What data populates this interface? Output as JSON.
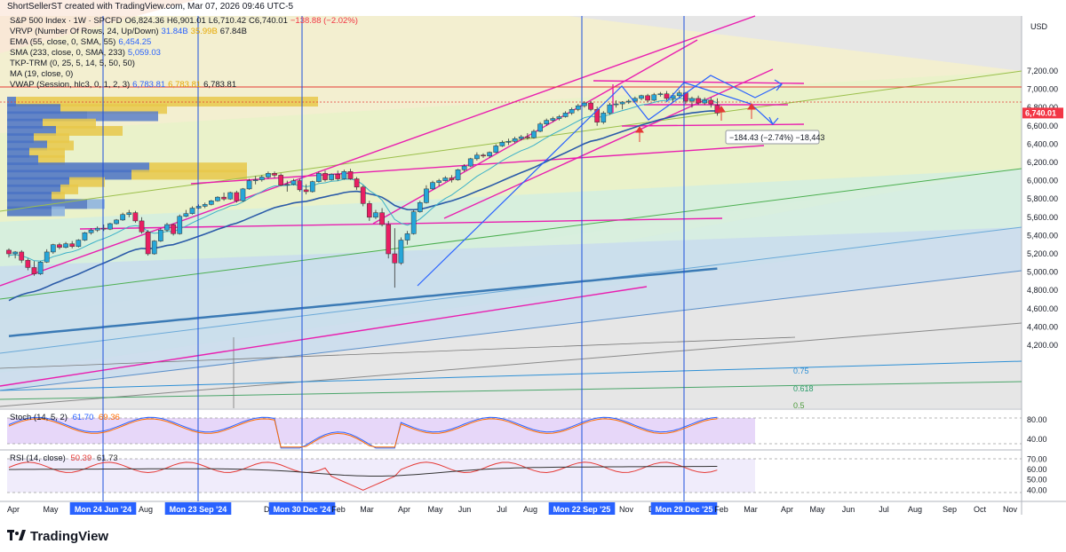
{
  "header": {
    "text": "ShortSellerST created with TradingView.com, Mar 07, 2026 09:46 UTC-5"
  },
  "legend": [
    {
      "label": "S&P 500 Index · 1W · SPCFD",
      "values": [
        "O6,824.36",
        "H6,901.01",
        "L6,710.42",
        "C6,740.01",
        "−138.88 (−2.02%)"
      ],
      "color": "#131722"
    },
    {
      "label": "VRVP (Number Of Rows, 24, Up/Down)",
      "values": [
        "31.84B",
        "35.99B",
        "67.84B"
      ],
      "color": "#131722"
    },
    {
      "label": "EMA (55, close, 0, SMA, 55)",
      "values": [
        "6,454.25"
      ],
      "color": "#131722"
    },
    {
      "label": "SMA (233, close, 0, SMA, 233)",
      "values": [
        "5,059.03"
      ],
      "color": "#131722"
    },
    {
      "label": "TKP-TRM (0, 25, 5, 14, 5, 50, 50)",
      "values": [],
      "color": "#131722"
    },
    {
      "label": "MA (19, close, 0)",
      "values": [],
      "color": "#131722"
    },
    {
      "label": "VWAP (Session, hlc3, 0, 1, 2, 3)",
      "values": [
        "6,783.81",
        "6,783.81",
        "6,783.81"
      ],
      "color": "#131722"
    }
  ],
  "price_axis": {
    "unit": "USD",
    "ticks": [
      "7,200.00",
      "7,000.00",
      "6,800.00",
      "6,600.00",
      "6,400.00",
      "6,200.00",
      "6,000.00",
      "5,800.00",
      "5,600.00",
      "5,400.00",
      "5,200.00",
      "5,000.00",
      "4,800.00",
      "4,600.00",
      "4,400.00",
      "4,200.00"
    ],
    "last_price": "6,740.01",
    "last_price_color": "#f23645"
  },
  "fib_labels": [
    "0.75",
    "0.618",
    "0.5"
  ],
  "measure_label": "−184.43 (−2.74%) −18,443",
  "stoch": {
    "label": "Stoch (14, 5, 2)",
    "values": [
      "61.70",
      "69.36"
    ],
    "ticks": [
      "80.00",
      "40.00"
    ]
  },
  "rsi": {
    "label": "RSI (14, close)",
    "values": [
      "50.39",
      "61.73"
    ],
    "ticks": [
      "70.00",
      "60.00",
      "50.00",
      "40.00"
    ]
  },
  "time_axis": {
    "labels": [
      "Apr",
      "May",
      "Mon 24 Jun '24",
      "Aug",
      "Mon 23 Sep '24",
      "Dec",
      "Mon 30 Dec '24",
      "Feb",
      "Mar",
      "Apr",
      "May",
      "Jun",
      "Jul",
      "Aug",
      "Mon 22 Sep '25",
      "Nov",
      "Dec",
      "Mon 29 Dec '25",
      "Feb",
      "Mar",
      "Apr",
      "May",
      "Jun",
      "Jul",
      "Aug",
      "Sep",
      "Oct",
      "Nov"
    ],
    "highlighted": [
      "Mon 24 Jun '24",
      "Mon 23 Sep '24",
      "Mon 30 Dec '24",
      "Mon 22 Sep '25",
      "Mon 29 Dec '25"
    ]
  },
  "brand": "TradingView",
  "colors": {
    "up_candle": "#26a6d9",
    "down_candle": "#e91e63",
    "channel": "#e91eaf",
    "ema": "#2a5aa8",
    "sma": "#3b7ab5",
    "vline": "#1e50dc"
  },
  "chart_data": {
    "type": "candlestick",
    "symbol": "S&P 500 Index",
    "timeframe": "1W",
    "ylim": [
      4170,
      7320
    ],
    "candles": [
      [
        5240,
        5260,
        5160,
        5200
      ],
      [
        5200,
        5230,
        5150,
        5220
      ],
      [
        5220,
        5240,
        5100,
        5130
      ],
      [
        5130,
        5150,
        5020,
        5050
      ],
      [
        5050,
        5120,
        4960,
        4980
      ],
      [
        4980,
        5120,
        4970,
        5110
      ],
      [
        5110,
        5250,
        5100,
        5220
      ],
      [
        5220,
        5310,
        5200,
        5300
      ],
      [
        5300,
        5320,
        5250,
        5270
      ],
      [
        5270,
        5330,
        5260,
        5310
      ],
      [
        5310,
        5340,
        5260,
        5280
      ],
      [
        5280,
        5360,
        5270,
        5350
      ],
      [
        5350,
        5440,
        5340,
        5430
      ],
      [
        5430,
        5480,
        5410,
        5460
      ],
      [
        5460,
        5500,
        5440,
        5480
      ],
      [
        5480,
        5520,
        5450,
        5470
      ],
      [
        5470,
        5540,
        5460,
        5530
      ],
      [
        5530,
        5580,
        5520,
        5570
      ],
      [
        5570,
        5650,
        5560,
        5630
      ],
      [
        5630,
        5680,
        5600,
        5650
      ],
      [
        5650,
        5670,
        5540,
        5560
      ],
      [
        5560,
        5600,
        5420,
        5440
      ],
      [
        5440,
        5460,
        5180,
        5200
      ],
      [
        5200,
        5350,
        5190,
        5340
      ],
      [
        5340,
        5480,
        5330,
        5460
      ],
      [
        5460,
        5540,
        5440,
        5520
      ],
      [
        5520,
        5530,
        5400,
        5420
      ],
      [
        5420,
        5630,
        5410,
        5610
      ],
      [
        5610,
        5680,
        5600,
        5640
      ],
      [
        5640,
        5720,
        5630,
        5700
      ],
      [
        5700,
        5740,
        5690,
        5720
      ],
      [
        5720,
        5760,
        5700,
        5740
      ],
      [
        5740,
        5790,
        5730,
        5780
      ],
      [
        5780,
        5830,
        5770,
        5820
      ],
      [
        5820,
        5870,
        5780,
        5800
      ],
      [
        5800,
        5880,
        5790,
        5870
      ],
      [
        5870,
        5890,
        5760,
        5780
      ],
      [
        5780,
        5920,
        5770,
        5910
      ],
      [
        5910,
        6020,
        5900,
        6000
      ],
      [
        6000,
        6050,
        5960,
        6010
      ],
      [
        6010,
        6060,
        5990,
        6040
      ],
      [
        6040,
        6100,
        6020,
        6080
      ],
      [
        6080,
        6100,
        6030,
        6060
      ],
      [
        6060,
        6080,
        5940,
        5950
      ],
      [
        5950,
        6000,
        5880,
        5960
      ],
      [
        5960,
        6020,
        5950,
        6000
      ],
      [
        6000,
        6020,
        5880,
        5900
      ],
      [
        5900,
        5960,
        5850,
        5880
      ],
      [
        5880,
        6000,
        5870,
        5990
      ],
      [
        5990,
        6100,
        5980,
        6080
      ],
      [
        6080,
        6110,
        5990,
        6010
      ],
      [
        6010,
        6080,
        6000,
        6070
      ],
      [
        6070,
        6110,
        6000,
        6020
      ],
      [
        6020,
        6120,
        6010,
        6100
      ],
      [
        6100,
        6130,
        6010,
        6020
      ],
      [
        6020,
        6040,
        5900,
        5930
      ],
      [
        5930,
        5950,
        5720,
        5750
      ],
      [
        5750,
        5780,
        5560,
        5600
      ],
      [
        5600,
        5680,
        5580,
        5650
      ],
      [
        5650,
        5700,
        5500,
        5520
      ],
      [
        5520,
        5560,
        5150,
        5200
      ],
      [
        5200,
        5480,
        4830,
        5100
      ],
      [
        5100,
        5380,
        5080,
        5350
      ],
      [
        5350,
        5450,
        5300,
        5420
      ],
      [
        5420,
        5680,
        5410,
        5660
      ],
      [
        5660,
        5780,
        5650,
        5760
      ],
      [
        5760,
        5950,
        5750,
        5910
      ],
      [
        5910,
        6000,
        5900,
        5980
      ],
      [
        5980,
        6020,
        5940,
        6000
      ],
      [
        6000,
        6050,
        5990,
        6030
      ],
      [
        6030,
        6060,
        5980,
        6010
      ],
      [
        6010,
        6130,
        6000,
        6120
      ],
      [
        6120,
        6180,
        6100,
        6160
      ],
      [
        6160,
        6250,
        6150,
        6240
      ],
      [
        6240,
        6310,
        6220,
        6280
      ],
      [
        6280,
        6300,
        6250,
        6270
      ],
      [
        6270,
        6320,
        6250,
        6310
      ],
      [
        6310,
        6400,
        6300,
        6380
      ],
      [
        6380,
        6440,
        6370,
        6420
      ],
      [
        6420,
        6460,
        6390,
        6430
      ],
      [
        6430,
        6480,
        6410,
        6460
      ],
      [
        6460,
        6500,
        6440,
        6480
      ],
      [
        6480,
        6520,
        6450,
        6470
      ],
      [
        6470,
        6560,
        6460,
        6540
      ],
      [
        6540,
        6640,
        6530,
        6620
      ],
      [
        6620,
        6680,
        6600,
        6660
      ],
      [
        6660,
        6700,
        6640,
        6680
      ],
      [
        6680,
        6720,
        6660,
        6700
      ],
      [
        6700,
        6760,
        6690,
        6740
      ],
      [
        6740,
        6800,
        6720,
        6780
      ],
      [
        6780,
        6840,
        6760,
        6820
      ],
      [
        6820,
        6870,
        6800,
        6850
      ],
      [
        6850,
        6870,
        6760,
        6780
      ],
      [
        6780,
        6810,
        6600,
        6640
      ],
      [
        6640,
        6760,
        6620,
        6740
      ],
      [
        6740,
        6850,
        6720,
        6830
      ],
      [
        6830,
        6880,
        6800,
        6840
      ],
      [
        6840,
        6870,
        6780,
        6860
      ],
      [
        6860,
        6890,
        6840,
        6870
      ],
      [
        6870,
        6920,
        6850,
        6900
      ],
      [
        6900,
        6940,
        6880,
        6930
      ],
      [
        6930,
        6950,
        6860,
        6880
      ],
      [
        6880,
        6960,
        6870,
        6940
      ],
      [
        6940,
        6970,
        6920,
        6950
      ],
      [
        6950,
        6980,
        6880,
        6900
      ],
      [
        6900,
        6960,
        6860,
        6930
      ],
      [
        6930,
        6990,
        6900,
        6960
      ],
      [
        6960,
        6970,
        6840,
        6870
      ],
      [
        6870,
        6920,
        6800,
        6900
      ],
      [
        6900,
        6930,
        6830,
        6850
      ],
      [
        6850,
        6910,
        6830,
        6880
      ],
      [
        6880,
        6910,
        6800,
        6840
      ],
      [
        6824.36,
        6901.01,
        6710.42,
        6740.01
      ]
    ],
    "stoch_range": [
      20,
      100
    ],
    "rsi_range": [
      30,
      78
    ]
  }
}
